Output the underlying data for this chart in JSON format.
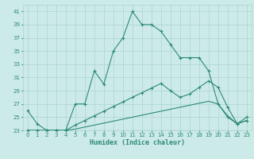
{
  "xlabel": "Humidex (Indice chaleur)",
  "x_values": [
    0,
    1,
    2,
    3,
    4,
    5,
    6,
    7,
    8,
    9,
    10,
    11,
    12,
    13,
    14,
    15,
    16,
    17,
    18,
    19,
    20,
    21,
    22,
    23
  ],
  "line_main": [
    26,
    24,
    23,
    23,
    23,
    27,
    27,
    32,
    30,
    35,
    37,
    41,
    39,
    39,
    38,
    36,
    34,
    34,
    34,
    32,
    27,
    25,
    24,
    25
  ],
  "line_flat": [
    23,
    23,
    23,
    23,
    23,
    23,
    23,
    23,
    23,
    23,
    23,
    23,
    23,
    23,
    23,
    23,
    23,
    23,
    23,
    23,
    23,
    23,
    23,
    23
  ],
  "line_upper": [
    23,
    23,
    23,
    23,
    23,
    23.8,
    24.5,
    25.2,
    25.9,
    26.6,
    27.3,
    28.0,
    28.7,
    29.4,
    30.1,
    29.0,
    28.0,
    28.5,
    29.5,
    30.5,
    29.5,
    26.5,
    24.0,
    24.5
  ],
  "line_lower": [
    23,
    23,
    23,
    23,
    23,
    23.2,
    23.5,
    23.8,
    24.1,
    24.4,
    24.7,
    25.0,
    25.3,
    25.6,
    25.9,
    26.2,
    26.5,
    26.8,
    27.1,
    27.4,
    27.0,
    25.2,
    24.0,
    24.5
  ],
  "line_color": "#2e8b74",
  "bg_color": "#cceae8",
  "grid_color": "#aad4d0",
  "ylim": [
    23,
    42
  ],
  "xlim": [
    -0.5,
    23.5
  ],
  "yticks": [
    23,
    25,
    27,
    29,
    31,
    33,
    35,
    37,
    39,
    41
  ],
  "xticks": [
    0,
    1,
    2,
    3,
    4,
    5,
    6,
    7,
    8,
    9,
    10,
    11,
    12,
    13,
    14,
    15,
    16,
    17,
    18,
    19,
    20,
    21,
    22,
    23
  ],
  "xlabel_fontsize": 6.0,
  "tick_fontsize": 5.0
}
